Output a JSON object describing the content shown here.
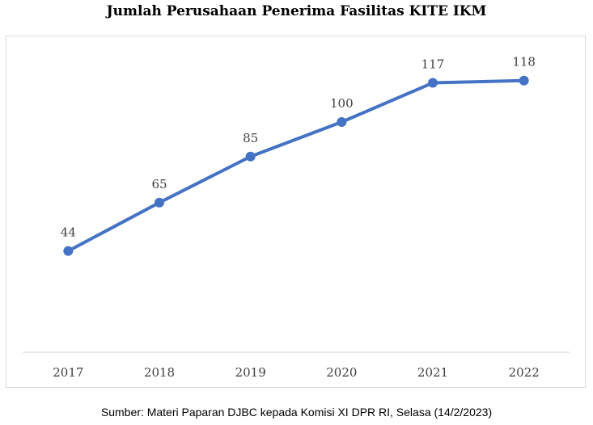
{
  "title": "Jumlah Perusahaan Penerima Fasilitas KITE IKM",
  "source": "Sumber: Materi Paparan DJBC kepada Komisi XI DPR RI, Selasa (14/2/2023)",
  "colors": {
    "line": "#4472c4",
    "axis": "#d9d9d9",
    "frame": "#d9d9d9",
    "label": "#404040"
  },
  "chart_data": {
    "type": "line",
    "title": "Jumlah Perusahaan Penerima Fasilitas KITE IKM",
    "xlabel": "",
    "ylabel": "",
    "categories": [
      "2017",
      "2018",
      "2019",
      "2020",
      "2021",
      "2022"
    ],
    "series": [
      {
        "values": [
          44,
          65,
          85,
          100,
          117,
          118
        ]
      }
    ],
    "data_labels": [
      "44",
      "65",
      "85",
      "100",
      "117",
      "118"
    ],
    "ylim": [
      0,
      140
    ],
    "grid": false,
    "legend": "none",
    "marker": "circle"
  }
}
